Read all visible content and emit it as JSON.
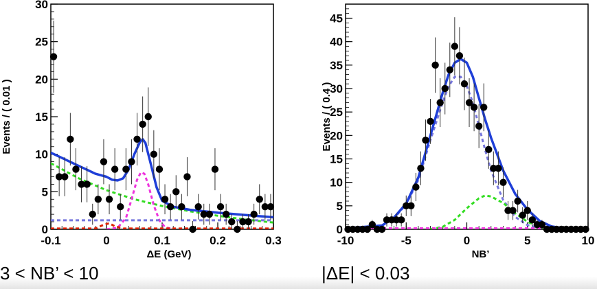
{
  "captions": {
    "left": "3 < NB’ < 10",
    "right": "|ΔE| < 0.03"
  },
  "colors": {
    "fit": "#1f3fd8",
    "background_green": "#33dd22",
    "signal_magenta": "#ee33dd",
    "peaking_violet": "#7777dd",
    "red_component": "#dd2200",
    "points": "#000000"
  },
  "chart_data": [
    {
      "type": "scatter",
      "title": "",
      "xlabel": "ΔE (GeV)",
      "ylabel": "Events / ( 0.01 )",
      "xlim": [
        -0.1,
        0.3
      ],
      "ylim": [
        0,
        30
      ],
      "xticks": [
        -0.1,
        0,
        0.1,
        0.2,
        0.3
      ],
      "xtick_labels": [
        "-0.1",
        "0",
        "0.1",
        "0.2",
        "0.3"
      ],
      "yticks": [
        0,
        5,
        10,
        15,
        20,
        25,
        30
      ],
      "ytick_labels": [
        "0",
        "5",
        "10",
        "15",
        "20",
        "25",
        "30"
      ],
      "grid": false,
      "points": [
        {
          "x": -0.095,
          "y": 23,
          "err": 4.8
        },
        {
          "x": -0.085,
          "y": 7,
          "err": 2.6
        },
        {
          "x": -0.075,
          "y": 7,
          "err": 2.6
        },
        {
          "x": -0.065,
          "y": 12,
          "err": 3.5
        },
        {
          "x": -0.055,
          "y": 8,
          "err": 2.8
        },
        {
          "x": -0.045,
          "y": 6,
          "err": 2.4
        },
        {
          "x": -0.035,
          "y": 6,
          "err": 2.4
        },
        {
          "x": -0.025,
          "y": 2,
          "err": 1.4
        },
        {
          "x": -0.015,
          "y": 4,
          "err": 2.0
        },
        {
          "x": -0.005,
          "y": 9,
          "err": 3.0
        },
        {
          "x": 0.005,
          "y": 4,
          "err": 2.0
        },
        {
          "x": 0.015,
          "y": 8,
          "err": 2.8
        },
        {
          "x": 0.025,
          "y": 3,
          "err": 1.7
        },
        {
          "x": 0.035,
          "y": 8,
          "err": 2.8
        },
        {
          "x": 0.045,
          "y": 9,
          "err": 3.0
        },
        {
          "x": 0.055,
          "y": 12,
          "err": 3.5
        },
        {
          "x": 0.065,
          "y": 14,
          "err": 3.7
        },
        {
          "x": 0.075,
          "y": 15,
          "err": 3.9
        },
        {
          "x": 0.085,
          "y": 10,
          "err": 3.2
        },
        {
          "x": 0.095,
          "y": 8,
          "err": 2.8
        },
        {
          "x": 0.105,
          "y": 4,
          "err": 2.0
        },
        {
          "x": 0.115,
          "y": 3,
          "err": 1.7
        },
        {
          "x": 0.125,
          "y": 5,
          "err": 2.2
        },
        {
          "x": 0.135,
          "y": 3,
          "err": 1.7
        },
        {
          "x": 0.145,
          "y": 7,
          "err": 2.6
        },
        {
          "x": 0.155,
          "y": 0,
          "err": 1.1
        },
        {
          "x": 0.165,
          "y": 3,
          "err": 1.7
        },
        {
          "x": 0.175,
          "y": 2,
          "err": 1.4
        },
        {
          "x": 0.185,
          "y": 2,
          "err": 1.4
        },
        {
          "x": 0.195,
          "y": 8,
          "err": 2.8
        },
        {
          "x": 0.205,
          "y": 3,
          "err": 1.7
        },
        {
          "x": 0.215,
          "y": 2,
          "err": 1.4
        },
        {
          "x": 0.225,
          "y": 1,
          "err": 1.0
        },
        {
          "x": 0.235,
          "y": 0,
          "err": 1.1
        },
        {
          "x": 0.245,
          "y": 1,
          "err": 1.0
        },
        {
          "x": 0.255,
          "y": 1,
          "err": 1.0
        },
        {
          "x": 0.265,
          "y": 2,
          "err": 1.4
        },
        {
          "x": 0.275,
          "y": 4,
          "err": 2.0
        },
        {
          "x": 0.285,
          "y": 3,
          "err": 1.7
        },
        {
          "x": 0.295,
          "y": 3,
          "err": 1.7
        }
      ],
      "curves": [
        {
          "color": "#1f3fd8",
          "style": "solid",
          "x": [
            -0.1,
            -0.08,
            -0.06,
            -0.04,
            -0.02,
            0,
            0.01,
            0.02,
            0.03,
            0.04,
            0.05,
            0.06,
            0.065,
            0.07,
            0.08,
            0.09,
            0.1,
            0.12,
            0.15,
            0.2,
            0.25,
            0.3
          ],
          "y": [
            10.2,
            9.5,
            8.8,
            8.1,
            7.4,
            7.0,
            6.6,
            6.5,
            6.8,
            8.0,
            10.0,
            11.6,
            12.0,
            11.5,
            8.6,
            5.6,
            3.8,
            3.0,
            2.6,
            2.2,
            1.9,
            1.6
          ]
        },
        {
          "color": "#33dd22",
          "style": "dashed",
          "x": [
            -0.1,
            -0.05,
            0,
            0.05,
            0.1,
            0.15,
            0.2,
            0.25,
            0.3
          ],
          "y": [
            8.8,
            6.8,
            5.2,
            4.0,
            3.1,
            2.4,
            1.8,
            1.3,
            0.9
          ]
        },
        {
          "color": "#ee33dd",
          "style": "dashed",
          "x": [
            0.0,
            0.02,
            0.035,
            0.045,
            0.055,
            0.062,
            0.068,
            0.075,
            0.085,
            0.095,
            0.105,
            0.12
          ],
          "y": [
            0,
            0.2,
            1.5,
            4.0,
            6.6,
            7.6,
            7.4,
            6.0,
            3.2,
            1.2,
            0.3,
            0
          ]
        },
        {
          "color": "#7777dd",
          "style": "dashed",
          "x": [
            -0.1,
            0.3
          ],
          "y": [
            1.2,
            1.2
          ]
        },
        {
          "color": "#dd2200",
          "style": "dashed",
          "x": [
            -0.1,
            -0.02,
            -0.005,
            0.005,
            0.015,
            0.03,
            0.3
          ],
          "y": [
            0.1,
            0.1,
            0.6,
            0.8,
            0.4,
            0.1,
            0.1
          ]
        }
      ]
    },
    {
      "type": "scatter",
      "title": "",
      "xlabel": "NB’",
      "ylabel": "Events / ( 0.4 )",
      "xlim": [
        -10,
        10
      ],
      "ylim": [
        0,
        48
      ],
      "xticks": [
        -10,
        -5,
        0,
        5,
        10
      ],
      "xtick_labels": [
        "-10",
        "-5",
        "0",
        "5",
        "10"
      ],
      "yticks": [
        0,
        5,
        10,
        15,
        20,
        25,
        30,
        35,
        40,
        45
      ],
      "ytick_labels": [
        "0",
        "5",
        "10",
        "15",
        "20",
        "25",
        "30",
        "35",
        "40",
        "45"
      ],
      "grid": false,
      "points": [
        {
          "x": -9.8,
          "y": 0,
          "err": 0.6
        },
        {
          "x": -9.4,
          "y": 0,
          "err": 0.6
        },
        {
          "x": -9.0,
          "y": 0,
          "err": 0.6
        },
        {
          "x": -8.6,
          "y": 0,
          "err": 0.6
        },
        {
          "x": -8.2,
          "y": 0,
          "err": 0.6
        },
        {
          "x": -7.8,
          "y": 1,
          "err": 1.0
        },
        {
          "x": -7.4,
          "y": 0,
          "err": 0.6
        },
        {
          "x": -7.0,
          "y": 0,
          "err": 0.6
        },
        {
          "x": -6.6,
          "y": 2,
          "err": 1.4
        },
        {
          "x": -6.2,
          "y": 2,
          "err": 1.4
        },
        {
          "x": -5.8,
          "y": 2,
          "err": 1.4
        },
        {
          "x": -5.4,
          "y": 2,
          "err": 1.4
        },
        {
          "x": -5.0,
          "y": 5,
          "err": 2.2
        },
        {
          "x": -4.6,
          "y": 5,
          "err": 2.2
        },
        {
          "x": -4.2,
          "y": 9,
          "err": 3.0
        },
        {
          "x": -3.8,
          "y": 13,
          "err": 3.6
        },
        {
          "x": -3.4,
          "y": 19,
          "err": 4.4
        },
        {
          "x": -3.0,
          "y": 23,
          "err": 4.8
        },
        {
          "x": -2.6,
          "y": 35,
          "err": 5.9
        },
        {
          "x": -2.2,
          "y": 27,
          "err": 5.2
        },
        {
          "x": -1.8,
          "y": 30,
          "err": 5.5
        },
        {
          "x": -1.4,
          "y": 34,
          "err": 5.8
        },
        {
          "x": -1.0,
          "y": 39,
          "err": 6.2
        },
        {
          "x": -0.6,
          "y": 37,
          "err": 6.1
        },
        {
          "x": -0.2,
          "y": 31,
          "err": 5.6
        },
        {
          "x": 0.2,
          "y": 27,
          "err": 5.2
        },
        {
          "x": 0.6,
          "y": 26,
          "err": 5.1
        },
        {
          "x": 1.0,
          "y": 22,
          "err": 4.7
        },
        {
          "x": 1.4,
          "y": 26,
          "err": 5.1
        },
        {
          "x": 1.8,
          "y": 17,
          "err": 4.1
        },
        {
          "x": 2.2,
          "y": 13,
          "err": 3.6
        },
        {
          "x": 2.6,
          "y": 13,
          "err": 3.6
        },
        {
          "x": 3.0,
          "y": 10,
          "err": 3.2
        },
        {
          "x": 3.4,
          "y": 4,
          "err": 2.0
        },
        {
          "x": 3.8,
          "y": 4,
          "err": 2.0
        },
        {
          "x": 4.2,
          "y": 6,
          "err": 2.4
        },
        {
          "x": 4.6,
          "y": 3,
          "err": 1.7
        },
        {
          "x": 5.0,
          "y": 4,
          "err": 2.0
        },
        {
          "x": 5.4,
          "y": 2,
          "err": 1.4
        },
        {
          "x": 5.8,
          "y": 1,
          "err": 1.0
        },
        {
          "x": 6.2,
          "y": 1,
          "err": 1.0
        },
        {
          "x": 6.6,
          "y": 0,
          "err": 0.6
        },
        {
          "x": 7.0,
          "y": 0,
          "err": 0.6
        },
        {
          "x": 7.4,
          "y": 0,
          "err": 0.6
        },
        {
          "x": 7.8,
          "y": 0,
          "err": 0.6
        },
        {
          "x": 8.2,
          "y": 0,
          "err": 0.6
        },
        {
          "x": 8.6,
          "y": 0,
          "err": 0.6
        },
        {
          "x": 9.0,
          "y": 0,
          "err": 0.6
        },
        {
          "x": 9.4,
          "y": 0,
          "err": 0.6
        },
        {
          "x": 9.8,
          "y": 0,
          "err": 0.6
        }
      ],
      "curves": [
        {
          "color": "#1f3fd8",
          "style": "solid",
          "x": [
            -10,
            -7,
            -6,
            -5,
            -4,
            -3,
            -2,
            -1.5,
            -1,
            -0.5,
            0,
            0.5,
            1,
            1.5,
            2,
            3,
            4,
            5,
            6,
            7,
            8,
            10
          ],
          "y": [
            0.2,
            0.8,
            2.5,
            5.5,
            11,
            20,
            29,
            33,
            35.5,
            36.3,
            35.5,
            32.5,
            28,
            23.5,
            19.5,
            12.5,
            7.5,
            4.2,
            1.8,
            0.6,
            0.2,
            0
          ]
        },
        {
          "color": "#7777dd",
          "style": "dashed",
          "x": [
            -10,
            -7,
            -6,
            -5,
            -4,
            -3,
            -2,
            -1.5,
            -1,
            -0.5,
            0,
            0.5,
            1,
            1.5,
            2,
            3,
            4,
            5,
            6,
            8,
            10
          ],
          "y": [
            0.2,
            0.8,
            2.4,
            5.3,
            10.5,
            19,
            27,
            30.5,
            32.5,
            32.5,
            30.5,
            27,
            22,
            17,
            12.5,
            6.2,
            2.6,
            0.9,
            0.3,
            0,
            0
          ]
        },
        {
          "color": "#33dd22",
          "style": "dashed",
          "x": [
            -3,
            -2,
            -1,
            0,
            1,
            1.5,
            2,
            3,
            4,
            5,
            6,
            7
          ],
          "y": [
            0,
            0.5,
            2.0,
            4.5,
            6.6,
            7.2,
            7.0,
            5.6,
            3.4,
            1.6,
            0.5,
            0
          ]
        },
        {
          "color": "#ee33dd",
          "style": "dashed",
          "x": [
            -10,
            10
          ],
          "y": [
            0.2,
            0.2
          ]
        }
      ]
    }
  ]
}
